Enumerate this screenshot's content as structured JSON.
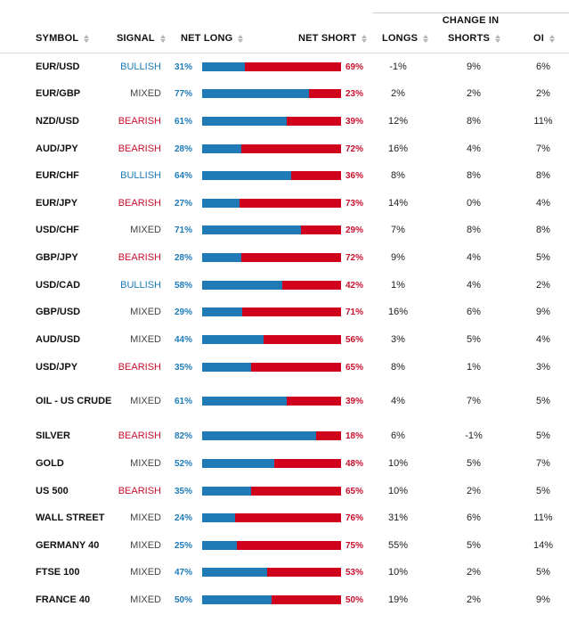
{
  "change_in_label": "CHANGE IN",
  "headers": {
    "symbol": "SYMBOL",
    "signal": "SIGNAL",
    "net_long": "NET LONG",
    "net_short": "NET SHORT",
    "longs": "LONGS",
    "shorts": "SHORTS",
    "oi": "OI"
  },
  "colors": {
    "long_blue": "#1f7ab5",
    "short_red": "#d0021b",
    "bullish": "#1c7bb8",
    "bearish": "#c8102e"
  },
  "rows": [
    {
      "symbol": "EUR/USD",
      "signal": "BULLISH",
      "net_long": "31%",
      "net_long_value": 31,
      "net_short": "69%",
      "longs": "-1%",
      "shorts": "9%",
      "oi": "6%"
    },
    {
      "symbol": "EUR/GBP",
      "signal": "MIXED",
      "net_long": "77%",
      "net_long_value": 77,
      "net_short": "23%",
      "longs": "2%",
      "shorts": "2%",
      "oi": "2%"
    },
    {
      "symbol": "NZD/USD",
      "signal": "BEARISH",
      "net_long": "61%",
      "net_long_value": 61,
      "net_short": "39%",
      "longs": "12%",
      "shorts": "8%",
      "oi": "11%"
    },
    {
      "symbol": "AUD/JPY",
      "signal": "BEARISH",
      "net_long": "28%",
      "net_long_value": 28,
      "net_short": "72%",
      "longs": "16%",
      "shorts": "4%",
      "oi": "7%"
    },
    {
      "symbol": "EUR/CHF",
      "signal": "BULLISH",
      "net_long": "64%",
      "net_long_value": 64,
      "net_short": "36%",
      "longs": "8%",
      "shorts": "8%",
      "oi": "8%"
    },
    {
      "symbol": "EUR/JPY",
      "signal": "BEARISH",
      "net_long": "27%",
      "net_long_value": 27,
      "net_short": "73%",
      "longs": "14%",
      "shorts": "0%",
      "oi": "4%"
    },
    {
      "symbol": "USD/CHF",
      "signal": "MIXED",
      "net_long": "71%",
      "net_long_value": 71,
      "net_short": "29%",
      "longs": "7%",
      "shorts": "8%",
      "oi": "8%"
    },
    {
      "symbol": "GBP/JPY",
      "signal": "BEARISH",
      "net_long": "28%",
      "net_long_value": 28,
      "net_short": "72%",
      "longs": "9%",
      "shorts": "4%",
      "oi": "5%"
    },
    {
      "symbol": "USD/CAD",
      "signal": "BULLISH",
      "net_long": "58%",
      "net_long_value": 58,
      "net_short": "42%",
      "longs": "1%",
      "shorts": "4%",
      "oi": "2%"
    },
    {
      "symbol": "GBP/USD",
      "signal": "MIXED",
      "net_long": "29%",
      "net_long_value": 29,
      "net_short": "71%",
      "longs": "16%",
      "shorts": "6%",
      "oi": "9%"
    },
    {
      "symbol": "AUD/USD",
      "signal": "MIXED",
      "net_long": "44%",
      "net_long_value": 44,
      "net_short": "56%",
      "longs": "3%",
      "shorts": "5%",
      "oi": "4%"
    },
    {
      "symbol": "USD/JPY",
      "signal": "BEARISH",
      "net_long": "35%",
      "net_long_value": 35,
      "net_short": "65%",
      "longs": "8%",
      "shorts": "1%",
      "oi": "3%"
    },
    {
      "symbol": "OIL - US CRUDE",
      "signal": "MIXED",
      "net_long": "61%",
      "net_long_value": 61,
      "net_short": "39%",
      "longs": "4%",
      "shorts": "7%",
      "oi": "5%"
    },
    {
      "symbol": "SILVER",
      "signal": "BEARISH",
      "net_long": "82%",
      "net_long_value": 82,
      "net_short": "18%",
      "longs": "6%",
      "shorts": "-1%",
      "oi": "5%"
    },
    {
      "symbol": "GOLD",
      "signal": "MIXED",
      "net_long": "52%",
      "net_long_value": 52,
      "net_short": "48%",
      "longs": "10%",
      "shorts": "5%",
      "oi": "7%"
    },
    {
      "symbol": "US 500",
      "signal": "BEARISH",
      "net_long": "35%",
      "net_long_value": 35,
      "net_short": "65%",
      "longs": "10%",
      "shorts": "2%",
      "oi": "5%"
    },
    {
      "symbol": "WALL STREET",
      "signal": "MIXED",
      "net_long": "24%",
      "net_long_value": 24,
      "net_short": "76%",
      "longs": "31%",
      "shorts": "6%",
      "oi": "11%"
    },
    {
      "symbol": "GERMANY 40",
      "signal": "MIXED",
      "net_long": "25%",
      "net_long_value": 25,
      "net_short": "75%",
      "longs": "55%",
      "shorts": "5%",
      "oi": "14%"
    },
    {
      "symbol": "FTSE 100",
      "signal": "MIXED",
      "net_long": "47%",
      "net_long_value": 47,
      "net_short": "53%",
      "longs": "10%",
      "shorts": "2%",
      "oi": "5%"
    },
    {
      "symbol": "FRANCE 40",
      "signal": "MIXED",
      "net_long": "50%",
      "net_long_value": 50,
      "net_short": "50%",
      "longs": "19%",
      "shorts": "2%",
      "oi": "9%"
    }
  ]
}
